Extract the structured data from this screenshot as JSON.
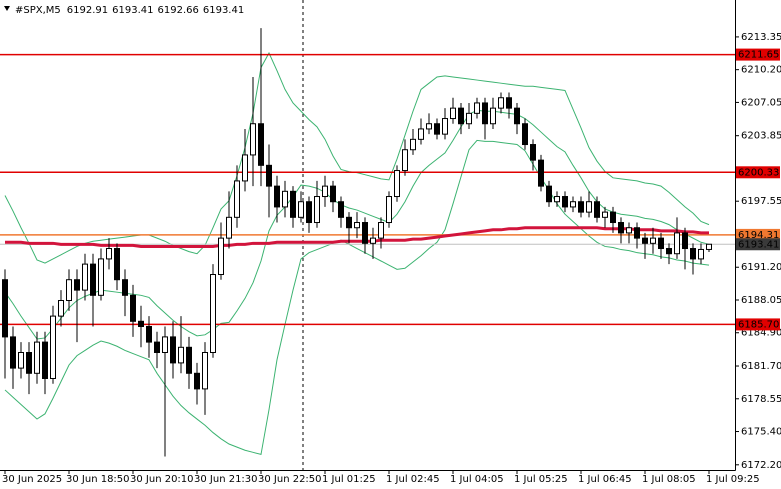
{
  "chart_data": {
    "type": "candlestick",
    "symbol": "#SPX,M5",
    "categories": [
      "30 Jun 2025",
      null,
      null,
      null,
      null,
      null,
      null,
      null,
      "30 Jun 18:50",
      null,
      null,
      null,
      null,
      null,
      null,
      null,
      "30 Jun 20:10",
      null,
      null,
      null,
      null,
      null,
      null,
      null,
      "30 Jun 21:30",
      null,
      null,
      null,
      null,
      null,
      null,
      null,
      "30 Jun 22:50",
      null,
      null,
      null,
      null,
      null,
      null,
      null,
      "1 Jul 01:25",
      null,
      null,
      null,
      null,
      null,
      null,
      null,
      "1 Jul 02:45",
      null,
      null,
      null,
      null,
      null,
      null,
      null,
      "1 Jul 04:05",
      null,
      null,
      null,
      null,
      null,
      null,
      null,
      "1 Jul 05:25",
      null,
      null,
      null,
      null,
      null,
      null,
      null,
      "1 Jul 06:45",
      null,
      null,
      null,
      null,
      null,
      null,
      null,
      "1 Jul 08:05",
      null,
      null,
      null,
      null,
      null,
      null,
      null,
      "1 Jul 09:25"
    ],
    "open": [
      6190,
      6184.5,
      6181.5,
      6183,
      6181,
      6184,
      6180.5,
      6186.5,
      6188,
      6190,
      6189,
      6191.5,
      6188.5,
      6192,
      6193,
      6190,
      6188.5,
      6186,
      6185.5,
      6184,
      6183,
      6184.5,
      6182,
      6183.5,
      6181,
      6179.5,
      6183,
      6190.5,
      6194,
      6196,
      6199.5,
      6202,
      6205,
      6201,
      6199,
      6197,
      6198.5,
      6196,
      6197.5,
      6195.5,
      6198,
      6199,
      6197.5,
      6196,
      6195,
      6195.5,
      6193.5,
      6194,
      6195.5,
      6198,
      6200.5,
      6202.5,
      6203.5,
      6204.5,
      6205,
      6204,
      6205.5,
      6206.5,
      6205,
      6206,
      6207,
      6205,
      6206.5,
      6207.5,
      6206.5,
      6205,
      6203,
      6201.5,
      6199,
      6197.5,
      6198,
      6197,
      6197.5,
      6196.5,
      6197.5,
      6196,
      6196.5,
      6195.5,
      6194.5,
      6195,
      6194,
      6193.5,
      6194,
      6193,
      6192.5,
      6194.5,
      6193,
      6192,
      6192.91
    ],
    "high": [
      6191,
      6185.5,
      6184,
      6184,
      6185,
      6185,
      6187.5,
      6189,
      6191,
      6191,
      6192.5,
      6192.5,
      6193,
      6194,
      6193.5,
      6191,
      6189.5,
      6187.5,
      6186.5,
      6185,
      6185.5,
      6186,
      6186.5,
      6184.5,
      6182,
      6184,
      6191.5,
      6195.5,
      6198.5,
      6201,
      6204.5,
      6209.5,
      6214.2,
      6203,
      6200,
      6199.5,
      6199,
      6198.5,
      6198,
      6199.5,
      6200,
      6199.5,
      6198,
      6196.5,
      6196.5,
      6196,
      6195,
      6196,
      6198.5,
      6201,
      6203.5,
      6204.5,
      6205.5,
      6206,
      6205.5,
      6206.5,
      6207.5,
      6207,
      6207,
      6207.5,
      6207.5,
      6207.5,
      6208,
      6208,
      6207,
      6205.5,
      6203.5,
      6202,
      6199.5,
      6198.5,
      6198.5,
      6198,
      6198,
      6198.5,
      6198,
      6197,
      6197,
      6196,
      6195.5,
      6195.5,
      6194.5,
      6195,
      6194.5,
      6193.5,
      6196,
      6195,
      6193.5,
      6193.5,
      6193.41
    ],
    "low": [
      6180.5,
      6179.5,
      6180.5,
      6179,
      6180,
      6179,
      6180,
      6185.5,
      6187,
      6184,
      6188,
      6185.5,
      6188,
      6191,
      6189,
      6186.5,
      6184.5,
      6183.5,
      6182.5,
      6181.5,
      6173,
      6180.5,
      6181,
      6179.5,
      6178,
      6177,
      6182.5,
      6190,
      6193,
      6195,
      6198.5,
      6199,
      6199,
      6196,
      6195.5,
      6196,
      6195,
      6195.5,
      6194.5,
      6195,
      6197,
      6196.5,
      6195,
      6193.5,
      6194,
      6192.5,
      6192,
      6193,
      6195,
      6197.5,
      6200,
      6202,
      6203,
      6204,
      6203.5,
      6203.5,
      6205,
      6204,
      6204.5,
      6205.5,
      6203.5,
      6204.5,
      6206,
      6205.5,
      6204,
      6202.5,
      6200.5,
      6198.5,
      6197,
      6197,
      6196.5,
      6196.5,
      6196,
      6196,
      6195.5,
      6195,
      6194.5,
      6193.5,
      6193.5,
      6193,
      6192,
      6192.5,
      6192,
      6191.5,
      6192,
      6191,
      6190.5,
      6191.5,
      6192.66
    ],
    "close": [
      6184.5,
      6181.5,
      6183,
      6181,
      6184,
      6180.5,
      6186.5,
      6188,
      6190,
      6189,
      6191.5,
      6188.5,
      6192,
      6193,
      6190,
      6188.5,
      6186,
      6185.5,
      6184,
      6183,
      6184.5,
      6182,
      6183.5,
      6181,
      6179.5,
      6183,
      6190.5,
      6194,
      6196,
      6199.5,
      6202,
      6205,
      6201,
      6199,
      6197,
      6198.5,
      6196,
      6197.5,
      6195.5,
      6198,
      6199,
      6197.5,
      6196,
      6195,
      6195.5,
      6193.5,
      6194,
      6195.5,
      6198,
      6200.5,
      6202.5,
      6203.5,
      6204.5,
      6205,
      6204,
      6205.5,
      6206.5,
      6205,
      6206,
      6207,
      6205,
      6206.5,
      6207.5,
      6206.5,
      6205,
      6203,
      6201.5,
      6199,
      6197.5,
      6198,
      6197,
      6197.5,
      6196.5,
      6197.5,
      6196,
      6196.5,
      6195.5,
      6194.5,
      6195,
      6194,
      6193.5,
      6194,
      6193,
      6192.5,
      6194.5,
      6193,
      6192,
      6192.91,
      6193.41
    ],
    "up_color": "#ffffff",
    "down_color": "#000000",
    "bands": {
      "color": "#3cb371",
      "upper": [
        6198.1,
        6196.6,
        6195,
        6193.5,
        6191.9,
        6191.6,
        6192,
        6192.4,
        6192.8,
        6193.2,
        6193.5,
        6193.7,
        6193.8,
        6193.9,
        6194,
        6194.1,
        6194.2,
        6194.3,
        6194.3,
        6194,
        6193.7,
        6193.3,
        6193,
        6192.7,
        6192.5,
        6193.3,
        6195,
        6196.8,
        6197.6,
        6200,
        6202.7,
        6206,
        6210.4,
        6211.8,
        6210.1,
        6208.3,
        6207,
        6206.2,
        6205.4,
        6204.7,
        6203.5,
        6201.9,
        6200.6,
        6200.4,
        6200.3,
        6200.1,
        6199.9,
        6199.7,
        6199.6,
        6201.6,
        6203.9,
        6206.2,
        6208.3,
        6208.9,
        6209.5,
        6209.6,
        6209.5,
        6209.4,
        6209.3,
        6209.2,
        6209.1,
        6209,
        6208.9,
        6208.8,
        6208.7,
        6208.6,
        6208.6,
        6208.5,
        6208.4,
        6208.3,
        6208.2,
        6206.4,
        6204.6,
        6202.7,
        6201.4,
        6200.4,
        6199.8,
        6199.7,
        6199.6,
        6199.5,
        6199.3,
        6199.2,
        6199,
        6198.4,
        6197.7,
        6197,
        6196.4,
        6195.6,
        6195.3
      ],
      "middle": [
        6188.8,
        6187.7,
        6186.5,
        6185.4,
        6184.3,
        6184.4,
        6185.3,
        6186.3,
        6187.3,
        6188,
        6188.4,
        6188.7,
        6189,
        6188.9,
        6188.8,
        6188.7,
        6188.6,
        6188.5,
        6188.3,
        6187.5,
        6186.8,
        6186.1,
        6185.5,
        6185,
        6184.6,
        6184.7,
        6185.2,
        6185.8,
        6185.9,
        6187,
        6188.2,
        6189.7,
        6191.8,
        6194.7,
        6196.2,
        6197,
        6198,
        6199.1,
        6199,
        6198.8,
        6198.4,
        6197.7,
        6197.2,
        6196.9,
        6196.7,
        6196.4,
        6196.1,
        6195.8,
        6195.5,
        6196.3,
        6197.5,
        6199,
        6200.3,
        6201,
        6201.6,
        6202.2,
        6203.4,
        6204.7,
        6205.9,
        6206.3,
        6206.2,
        6206.2,
        6206.1,
        6206,
        6205.9,
        6205.5,
        6204.9,
        6204.2,
        6203.5,
        6202.8,
        6202.3,
        6201,
        6199.8,
        6198.5,
        6197.5,
        6196.8,
        6196.5,
        6196.3,
        6196.2,
        6196.1,
        6195.9,
        6195.8,
        6195.6,
        6195.3,
        6194.8,
        6194.4,
        6194,
        6193.6,
        6193.4
      ],
      "lower": [
        6179.4,
        6178.7,
        6178,
        6177.3,
        6176.6,
        6177.1,
        6178.6,
        6180.2,
        6181.8,
        6182.7,
        6183.2,
        6183.7,
        6184.1,
        6183.9,
        6183.6,
        6183.2,
        6182.9,
        6182.6,
        6182.3,
        6181,
        6179.9,
        6178.8,
        6177.9,
        6177.2,
        6176.6,
        6176,
        6175.3,
        6174.7,
        6174.2,
        6173.9,
        6173.6,
        6173.4,
        6173.2,
        6177.5,
        6182.3,
        6185.7,
        6189,
        6192,
        6192.6,
        6192.9,
        6193.2,
        6193.5,
        6193.8,
        6193.4,
        6193,
        6192.6,
        6192.2,
        6191.8,
        6191.4,
        6191,
        6191.1,
        6191.7,
        6192.3,
        6193,
        6193.6,
        6194.8,
        6197.3,
        6199.9,
        6202.5,
        6203.4,
        6203.3,
        6203.3,
        6203.2,
        6203.1,
        6203,
        6202.4,
        6201.1,
        6199.8,
        6198.6,
        6197.3,
        6196.3,
        6195.6,
        6194.9,
        6194.2,
        6193.6,
        6193.2,
        6193.1,
        6192.9,
        6192.8,
        6192.6,
        6192.5,
        6192.4,
        6192.2,
        6192.1,
        6191.9,
        6191.8,
        6191.6,
        6191.5,
        6191.4
      ]
    },
    "ma": {
      "color": "#d2143c",
      "values": [
        6193.6,
        6193.6,
        6193.6,
        6193.5,
        6193.5,
        6193.5,
        6193.5,
        6193.4,
        6193.4,
        6193.4,
        6193.4,
        6193.4,
        6193.3,
        6193.3,
        6193.3,
        6193.3,
        6193.3,
        6193.2,
        6193.2,
        6193.2,
        6193.2,
        6193.2,
        6193.2,
        6193.2,
        6193.2,
        6193.2,
        6193.2,
        6193.3,
        6193.3,
        6193.4,
        6193.4,
        6193.5,
        6193.5,
        6193.5,
        6193.6,
        6193.6,
        6193.6,
        6193.6,
        6193.6,
        6193.6,
        6193.6,
        6193.6,
        6193.7,
        6193.7,
        6193.7,
        6193.7,
        6193.7,
        6193.8,
        6193.8,
        6193.8,
        6193.8,
        6193.9,
        6193.9,
        6194,
        6194.1,
        6194.2,
        6194.3,
        6194.4,
        6194.5,
        6194.6,
        6194.7,
        6194.8,
        6194.8,
        6194.9,
        6194.9,
        6195,
        6195,
        6195,
        6195,
        6195,
        6195,
        6195,
        6195,
        6195,
        6195,
        6194.9,
        6194.9,
        6194.9,
        6194.9,
        6194.8,
        6194.8,
        6194.8,
        6194.7,
        6194.7,
        6194.7,
        6194.6,
        6194.6,
        6194.5,
        6194.5
      ]
    },
    "levels": [
      {
        "value": 6211.65,
        "label": "6211.65",
        "color": "#e00000"
      },
      {
        "value": 6200.33,
        "label": "6200.33",
        "color": "#e00000"
      },
      {
        "value": 6194.31,
        "label": "6194.31",
        "color": "#f07830"
      },
      {
        "value": 6185.7,
        "label": "6185.70",
        "color": "#e00000"
      }
    ],
    "last_color": "#3a3a3a",
    "ylim": [
      6171.7,
      6216.9
    ],
    "yticks": [
      6213.35,
      {
        "value": 6210.2,
        "label": "6210.20"
      },
      6207.05,
      6203.85,
      6197.55,
      {
        "value": 6191.2,
        "label": "6191.20"
      },
      6188.05,
      {
        "value": 6184.9,
        "label": "6184.90"
      },
      {
        "value": 6181.7,
        "label": "6181.70"
      },
      6178.55,
      {
        "value": 6175.4,
        "label": "6175.40"
      },
      {
        "value": 6172.2,
        "label": "6172.20"
      }
    ],
    "grid": false
  }
}
